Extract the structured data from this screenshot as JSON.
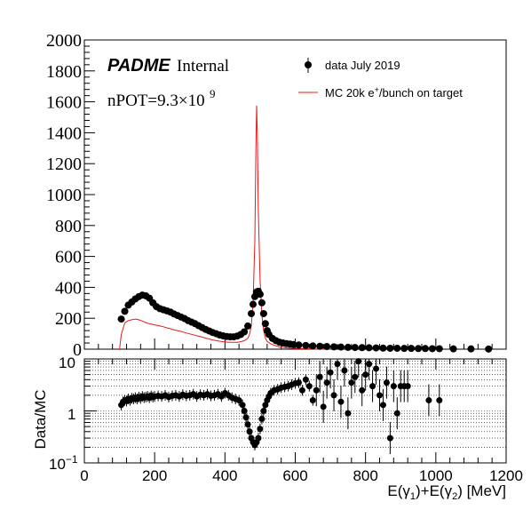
{
  "chart_data": [
    {
      "type": "line",
      "panel": "top",
      "xlim": [
        0,
        1200
      ],
      "ylim": [
        0,
        2000
      ],
      "yticks": [
        "0",
        "200",
        "400",
        "600",
        "800",
        "1000",
        "1200",
        "1400",
        "1600",
        "1800",
        "2000"
      ],
      "grid": false,
      "legend_placement": "top-right",
      "annotations": {
        "logo_bold": "PADME",
        "logo_text": "Internal",
        "npot_label": "nPOT=9.3×10",
        "npot_exp": "9"
      },
      "legend": {
        "data_label": "data July 2019",
        "mc_label_pre": "MC 20k e",
        "mc_label_sup": "+",
        "mc_label_post": "/bunch on target"
      },
      "series": [
        {
          "name": "data July 2019",
          "style": "markers",
          "color": "#000000",
          "x": [
            105,
            115,
            125,
            135,
            145,
            155,
            165,
            175,
            185,
            195,
            205,
            215,
            225,
            235,
            245,
            255,
            265,
            275,
            285,
            295,
            305,
            315,
            325,
            335,
            345,
            355,
            365,
            375,
            385,
            395,
            405,
            415,
            425,
            435,
            445,
            455,
            465,
            475,
            480,
            485,
            490,
            495,
            500,
            505,
            510,
            515,
            520,
            525,
            535,
            545,
            555,
            565,
            575,
            585,
            595,
            610,
            630,
            650,
            670,
            690,
            710,
            730,
            750,
            770,
            790,
            810,
            830,
            850,
            870,
            890,
            910,
            930,
            950,
            970,
            990,
            1010,
            1050,
            1100,
            1150
          ],
          "y": [
            195,
            245,
            285,
            305,
            325,
            340,
            350,
            345,
            330,
            300,
            275,
            262,
            255,
            248,
            240,
            228,
            218,
            208,
            198,
            185,
            175,
            165,
            152,
            140,
            128,
            118,
            108,
            100,
            92,
            86,
            82,
            80,
            80,
            85,
            95,
            112,
            150,
            230,
            290,
            340,
            370,
            375,
            355,
            300,
            230,
            165,
            120,
            95,
            70,
            55,
            45,
            40,
            36,
            33,
            30,
            27,
            24,
            21,
            19,
            17,
            15,
            14,
            12,
            11,
            10,
            9,
            8,
            7,
            6,
            6,
            5,
            5,
            4,
            4,
            3,
            3,
            2,
            2,
            1
          ]
        },
        {
          "name": "MC 20k e+/bunch on target",
          "style": "line",
          "color": "#e8191a",
          "x": [
            100,
            105,
            115,
            125,
            135,
            145,
            155,
            165,
            175,
            185,
            195,
            205,
            215,
            225,
            235,
            245,
            255,
            265,
            275,
            285,
            295,
            305,
            315,
            325,
            335,
            345,
            355,
            365,
            375,
            385,
            395,
            405,
            415,
            425,
            435,
            445,
            455,
            465,
            470,
            475,
            480,
            485,
            488,
            490,
            492,
            495,
            500,
            505,
            510,
            515,
            520,
            530,
            540,
            550,
            560,
            575,
            600,
            650,
            700
          ],
          "y": [
            0,
            95,
            170,
            185,
            190,
            195,
            190,
            182,
            172,
            165,
            160,
            155,
            150,
            145,
            138,
            132,
            125,
            120,
            115,
            108,
            102,
            96,
            90,
            84,
            78,
            72,
            66,
            60,
            55,
            52,
            48,
            46,
            44,
            44,
            45,
            48,
            55,
            70,
            95,
            150,
            300,
            700,
            1300,
            1575,
            1400,
            900,
            450,
            220,
            120,
            70,
            50,
            35,
            25,
            18,
            12,
            8,
            5,
            2,
            0
          ]
        }
      ]
    },
    {
      "type": "scatter",
      "panel": "bottom",
      "xlabel": "E(γ1)+E(γ2) [MeV]",
      "xlabel_parts": {
        "a": "E(γ",
        "b": "1",
        "c": ")+E(γ",
        "d": "2",
        "e": ") [MeV]"
      },
      "ylabel": "Data/MC",
      "xlim": [
        0,
        1200
      ],
      "ylim": [
        0.1,
        10
      ],
      "yscale": "log",
      "xticks": [
        "0",
        "200",
        "400",
        "600",
        "800",
        "1000",
        "1200"
      ],
      "yticks": {
        "top": "10",
        "mid": "1",
        "bot_base": "10",
        "bot_exp": "−1"
      },
      "grid": true,
      "series": [
        {
          "name": "",
          "color": "#000000",
          "x": [
            105,
            110,
            115,
            120,
            125,
            130,
            135,
            140,
            145,
            150,
            155,
            160,
            165,
            170,
            175,
            180,
            185,
            190,
            195,
            200,
            210,
            220,
            230,
            240,
            250,
            260,
            270,
            280,
            290,
            300,
            310,
            320,
            330,
            340,
            350,
            360,
            370,
            380,
            390,
            400,
            410,
            420,
            430,
            440,
            450,
            455,
            460,
            465,
            470,
            475,
            480,
            485,
            490,
            495,
            500,
            505,
            510,
            515,
            520,
            525,
            530,
            540,
            550,
            560,
            570,
            580,
            590,
            600,
            610,
            620,
            630,
            640,
            650,
            660,
            670,
            680,
            690,
            700,
            710,
            720,
            730,
            740,
            750,
            760,
            770,
            780,
            790,
            800,
            810,
            820,
            830,
            840,
            850,
            860,
            870,
            880,
            890,
            900,
            910,
            920,
            980,
            1010
          ],
          "y": [
            1.3,
            1.5,
            1.6,
            1.55,
            1.7,
            1.6,
            1.75,
            1.7,
            1.8,
            1.7,
            1.85,
            1.75,
            1.9,
            1.8,
            1.85,
            1.9,
            1.8,
            1.95,
            1.85,
            1.9,
            1.95,
            1.9,
            2.0,
            1.85,
            1.95,
            2.0,
            1.9,
            2.05,
            1.95,
            2.0,
            2.1,
            1.9,
            2.05,
            2.0,
            2.1,
            1.95,
            2.0,
            2.1,
            1.9,
            2.2,
            2.0,
            1.8,
            1.7,
            1.6,
            1.3,
            1.0,
            0.75,
            0.55,
            0.4,
            0.3,
            0.25,
            0.22,
            0.25,
            0.3,
            0.45,
            0.7,
            1.0,
            1.3,
            1.6,
            1.9,
            2.2,
            2.5,
            2.6,
            2.8,
            2.9,
            3.0,
            3.2,
            3.4,
            3.5,
            2.5,
            4.0,
            3.0,
            1.6,
            2.5,
            4.5,
            1.2,
            3.5,
            5.5,
            2.0,
            8.0,
            1.5,
            6.0,
            0.9,
            3.5,
            4.5,
            9.0,
            2.5,
            5.0,
            8.0,
            3.0,
            6.5,
            2.0,
            1.3,
            3.5,
            0.3,
            3.0,
            0.9,
            3.0,
            3.0,
            3.0,
            1.6,
            1.6
          ]
        }
      ]
    }
  ]
}
